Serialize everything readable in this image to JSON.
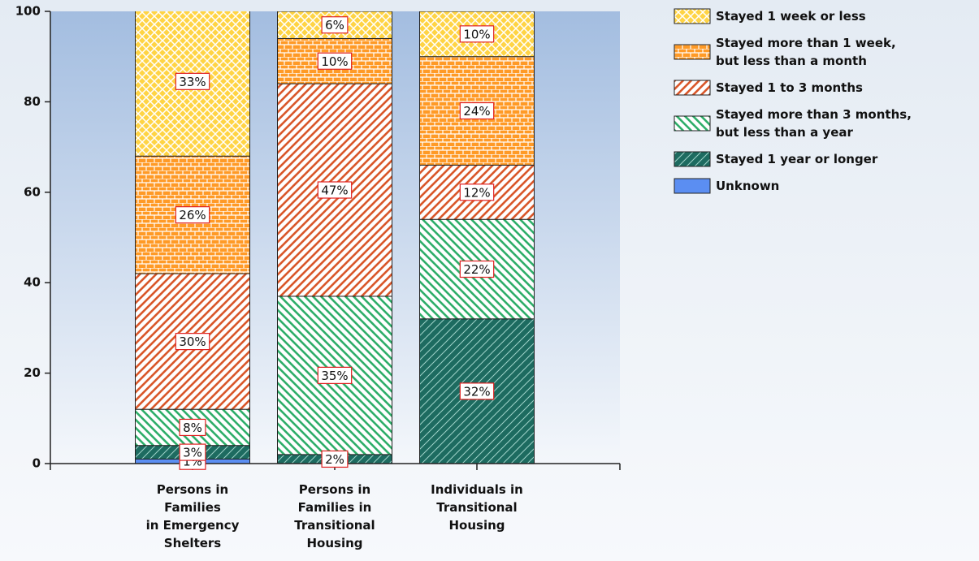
{
  "chart_data": {
    "type": "stacked_bar",
    "categories": [
      "Persons in\nFamilies\nin Emergency\nShelters",
      "Persons in\nFamilies in\nTransitional\nHousing",
      "Individuals in\nTransitional\nHousing"
    ],
    "series": [
      {
        "name": "Stayed 1 week or less",
        "color": "#ffd445",
        "values": [
          33,
          6,
          10
        ],
        "value_labels": [
          "33%",
          "6%",
          "10%"
        ]
      },
      {
        "name": "Stayed more than 1 week,\nbut less than a month",
        "color": "#ff9a26",
        "values": [
          26,
          10,
          24
        ],
        "value_labels": [
          "26%",
          "10%",
          "24%"
        ]
      },
      {
        "name": "Stayed 1 to 3 months",
        "color": "#d9572a",
        "values": [
          30,
          47,
          12
        ],
        "value_labels": [
          "30%",
          "47%",
          "12%"
        ]
      },
      {
        "name": "Stayed more than 3 months,\nbut less than a year",
        "color": "#2fae6a",
        "values": [
          8,
          35,
          22
        ],
        "value_labels": [
          "8%",
          "35%",
          "22%"
        ]
      },
      {
        "name": "Stayed 1 year or longer",
        "color": "#1d6b60",
        "values": [
          3,
          2,
          32
        ],
        "value_labels": [
          "3%",
          "2%",
          "32%"
        ]
      },
      {
        "name": "Unknown",
        "color": "#5b8ef2",
        "values": [
          1,
          0,
          0
        ],
        "value_labels": [
          "1%",
          null,
          null
        ]
      }
    ],
    "ylim": [
      0,
      100
    ],
    "yticks": [
      0,
      20,
      40,
      60,
      80,
      100
    ],
    "grid": false,
    "legend": "right"
  }
}
